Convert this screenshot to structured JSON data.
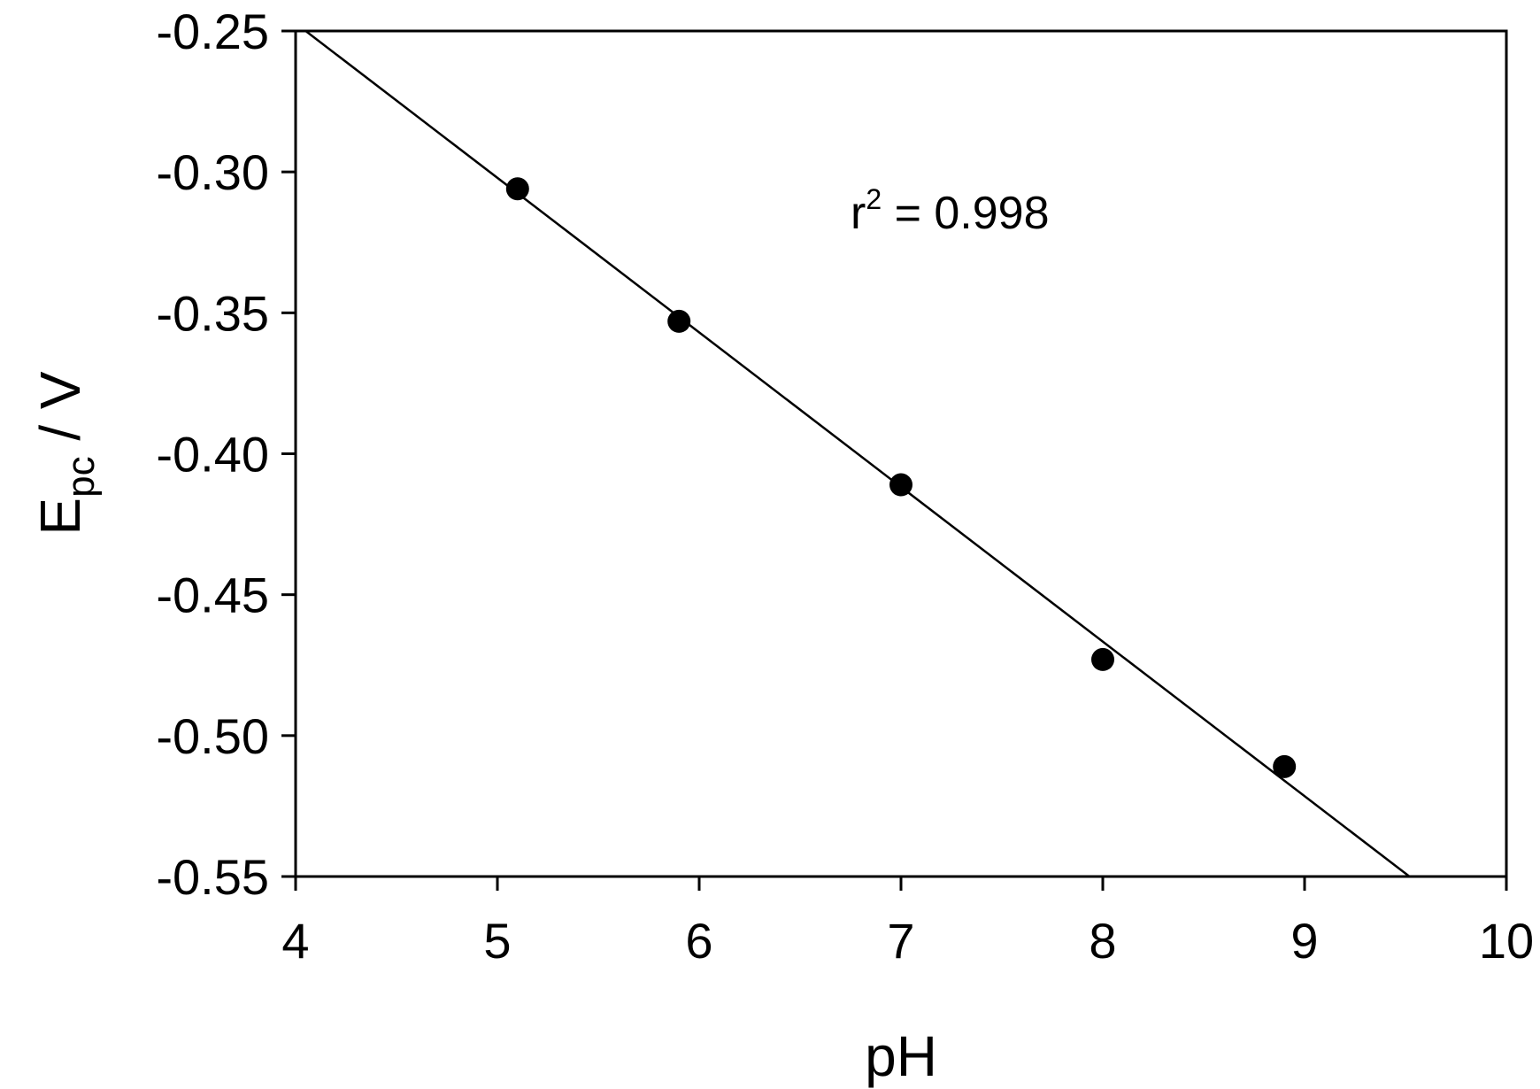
{
  "chart_data": {
    "type": "scatter",
    "title": "",
    "xlabel": "pH",
    "ylabel": {
      "main": "E",
      "subscript": "pc",
      "unit": " / V"
    },
    "xlim": [
      4,
      10
    ],
    "ylim": [
      -0.55,
      -0.25
    ],
    "x_ticks": [
      4,
      5,
      6,
      7,
      8,
      9,
      10
    ],
    "x_tick_labels": [
      "4",
      "5",
      "6",
      "7",
      "8",
      "9",
      "10"
    ],
    "y_ticks": [
      -0.25,
      -0.3,
      -0.35,
      -0.4,
      -0.45,
      -0.5,
      -0.55
    ],
    "y_tick_labels": [
      "-0.25",
      "-0.30",
      "-0.35",
      "-0.40",
      "-0.45",
      "-0.50",
      "-0.55"
    ],
    "grid": false,
    "legend": "none",
    "series": [
      {
        "points": [
          {
            "x": 5.1,
            "y": -0.306
          },
          {
            "x": 5.9,
            "y": -0.353
          },
          {
            "x": 7.0,
            "y": -0.411
          },
          {
            "x": 8.0,
            "y": -0.473
          },
          {
            "x": 8.9,
            "y": -0.511
          }
        ],
        "marker": "filled-circle",
        "color": "#000000"
      }
    ],
    "fit_line": {
      "x": [
        4.05,
        9.52
      ],
      "y": [
        -0.25,
        -0.55
      ],
      "color": "#000000"
    },
    "annotation": {
      "prefix": "r",
      "superscript": "2",
      "suffix": " = 0.998",
      "x": 6.75,
      "y": -0.32
    }
  }
}
